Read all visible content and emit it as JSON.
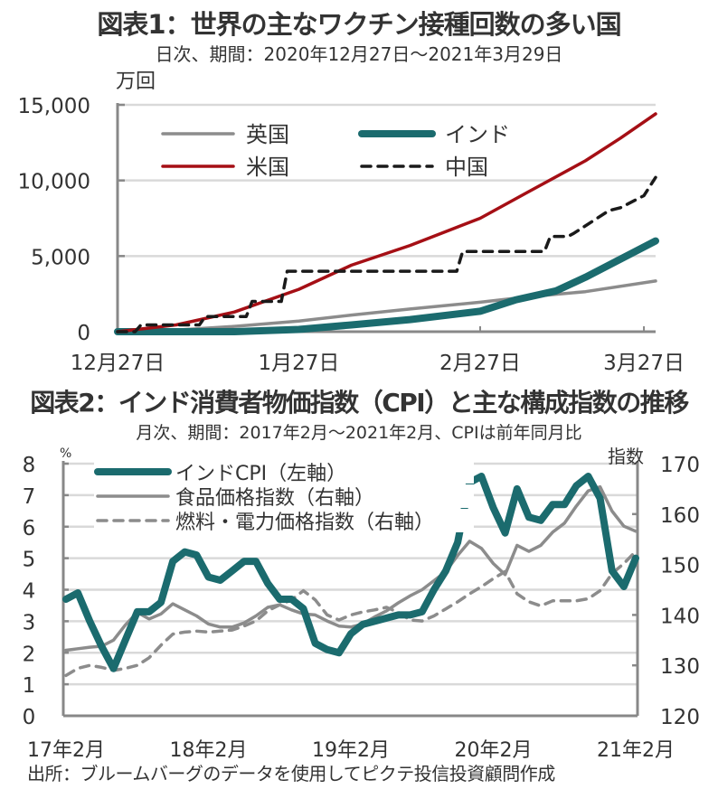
{
  "source": "出所：ブルームバーグのデータを使用してピクテ投信投資顧問作成",
  "chart_data": [
    {
      "type": "line",
      "title": "図表1：世界の主なワクチン接種回数の多い国",
      "subtitle": "日次、期間：2020年12月27日～2021年3月29日",
      "ylabel": "万回",
      "xlabel": "",
      "ylim": [
        0,
        15000
      ],
      "yticks": [
        0,
        5000,
        10000,
        15000
      ],
      "ytick_labels": [
        "0",
        "5,000",
        "10,000",
        "15,000"
      ],
      "xtick_labels": [
        "12月27日",
        "1月27日",
        "2月27日",
        "3月27日"
      ],
      "xtick_days": [
        0,
        31,
        62,
        90
      ],
      "x_range_days": [
        0,
        92
      ],
      "grid": true,
      "legend_position": "top-left",
      "series": [
        {
          "name": "英国",
          "color": "#8c8c8c",
          "style": "solid",
          "width": "medium",
          "days": [
            0,
            10,
            20,
            31,
            40,
            50,
            62,
            70,
            80,
            92
          ],
          "values": [
            0,
            100,
            350,
            700,
            1100,
            1500,
            1950,
            2300,
            2650,
            3350
          ]
        },
        {
          "name": "インド",
          "color": "#1b6b6e",
          "style": "solid",
          "width": "thick",
          "days": [
            0,
            20,
            31,
            40,
            50,
            62,
            68,
            75,
            80,
            86,
            92
          ],
          "values": [
            0,
            0,
            150,
            450,
            800,
            1350,
            2100,
            2700,
            3600,
            4800,
            6000
          ]
        },
        {
          "name": "米国",
          "color": "#a50f15",
          "style": "solid",
          "width": "medium",
          "days": [
            0,
            10,
            20,
            31,
            40,
            50,
            62,
            70,
            80,
            86,
            92
          ],
          "values": [
            0,
            450,
            1300,
            2800,
            4400,
            5700,
            7500,
            9200,
            11300,
            12800,
            14400
          ]
        },
        {
          "name": "中国",
          "color": "#1a1a1a",
          "style": "dashed",
          "width": "medium",
          "days": [
            0,
            3,
            4,
            14,
            15,
            22,
            23,
            28,
            29,
            58,
            59,
            73,
            74,
            77,
            78,
            84,
            86,
            90,
            92
          ],
          "values": [
            0,
            0,
            450,
            450,
            1000,
            1000,
            2000,
            2000,
            4000,
            4000,
            5300,
            5300,
            6300,
            6300,
            6500,
            8000,
            8200,
            9000,
            10200
          ]
        }
      ]
    },
    {
      "type": "line",
      "title": "図表2：インド消費者物価指数（CPI）と主な構成指数の推移",
      "subtitle": "月次、期間：2017年2月～2021年2月、CPIは前年同月比",
      "ylabel_left": "%",
      "ylabel_right": "指数",
      "ylim_left": [
        0,
        8
      ],
      "ylim_right": [
        120,
        170
      ],
      "yticks_left": [
        0,
        1,
        2,
        3,
        4,
        5,
        6,
        7,
        8
      ],
      "yticks_right": [
        120,
        130,
        140,
        150,
        160,
        170
      ],
      "xtick_labels": [
        "17年2月",
        "18年2月",
        "19年2月",
        "20年2月",
        "21年2月"
      ],
      "x_start": "2017-02",
      "x_end": "2021-02",
      "grid": true,
      "legend_position": "top-left",
      "series": [
        {
          "name": "インドCPI（左軸）",
          "axis": "left",
          "color": "#1b6b6e",
          "style": "solid",
          "width": "thick",
          "values": [
            3.7,
            3.9,
            3.0,
            2.2,
            1.5,
            2.4,
            3.3,
            3.3,
            3.6,
            4.9,
            5.2,
            5.1,
            4.4,
            4.3,
            4.6,
            4.9,
            4.9,
            4.2,
            3.7,
            3.7,
            3.4,
            2.3,
            2.1,
            2.0,
            2.6,
            2.9,
            3.0,
            3.1,
            3.2,
            3.2,
            3.3,
            4.0,
            4.6,
            5.5,
            7.4,
            7.6,
            6.6,
            5.8,
            7.2,
            6.3,
            6.2,
            6.7,
            6.7,
            7.3,
            7.6,
            6.9,
            4.6,
            4.1,
            5.0
          ]
        },
        {
          "name": "食品価格指数（右軸）",
          "axis": "right",
          "color": "#8c8c8c",
          "style": "solid",
          "width": "medium",
          "values": [
            133.0,
            133.3,
            133.6,
            133.8,
            135.0,
            138.0,
            140.5,
            139.2,
            140.2,
            142.2,
            141.0,
            139.8,
            138.2,
            137.6,
            137.6,
            138.4,
            139.8,
            141.5,
            142.0,
            141.0,
            140.2,
            140.0,
            138.8,
            137.8,
            137.6,
            138.2,
            139.6,
            140.8,
            142.4,
            143.8,
            145.0,
            146.8,
            148.6,
            151.8,
            154.6,
            153.2,
            150.2,
            148.0,
            153.8,
            152.6,
            153.8,
            156.4,
            158.2,
            161.6,
            164.6,
            165.4,
            160.6,
            157.6,
            156.6
          ]
        },
        {
          "name": "燃料・電力価格指数（右軸）",
          "axis": "right",
          "color": "#8c8c8c",
          "style": "dashed",
          "width": "medium",
          "values": [
            128.0,
            129.4,
            130.0,
            129.6,
            129.0,
            129.4,
            130.0,
            131.5,
            134.0,
            136.2,
            136.6,
            136.8,
            136.6,
            136.8,
            137.0,
            137.8,
            138.8,
            140.8,
            142.0,
            143.0,
            144.8,
            143.0,
            140.0,
            139.0,
            140.0,
            140.6,
            141.0,
            141.5,
            140.5,
            139.0,
            138.8,
            139.8,
            141.2,
            142.6,
            144.2,
            145.6,
            147.2,
            148.6,
            144.2,
            142.6,
            141.8,
            142.8,
            142.8,
            142.8,
            143.2,
            144.8,
            148.2,
            150.2,
            152.6
          ]
        }
      ]
    }
  ]
}
